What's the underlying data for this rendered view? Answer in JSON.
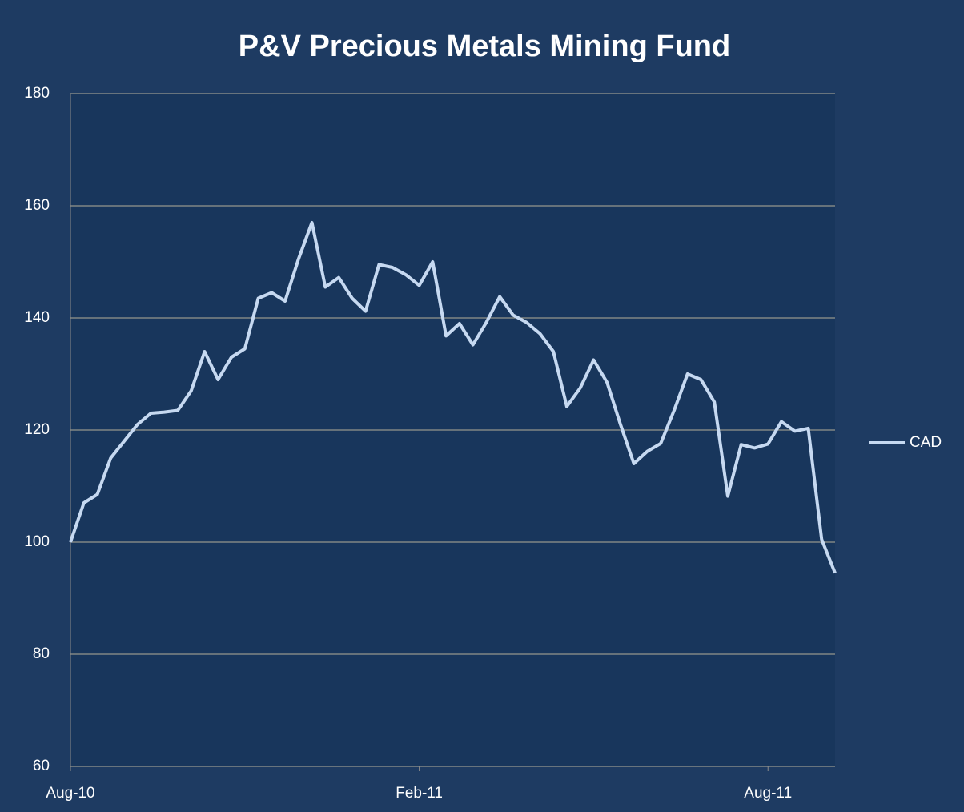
{
  "chart_data": {
    "type": "line",
    "title": "P&V Precious Metals Mining Fund",
    "categories": [
      "Aug-10",
      null,
      null,
      null,
      null,
      null,
      null,
      null,
      null,
      null,
      null,
      null,
      null,
      null,
      null,
      null,
      null,
      null,
      null,
      null,
      null,
      null,
      null,
      null,
      null,
      null,
      "Feb-11",
      null,
      null,
      null,
      null,
      null,
      null,
      null,
      null,
      null,
      null,
      null,
      null,
      null,
      null,
      null,
      null,
      null,
      null,
      null,
      null,
      null,
      null,
      null,
      null,
      null,
      "Aug-11",
      null,
      null,
      null,
      null,
      null
    ],
    "series": [
      {
        "name": "CAD",
        "color": "#c6d9f1",
        "values": [
          100,
          107,
          108.5,
          115,
          118,
          121,
          123,
          123.2,
          123.5,
          127,
          134,
          129,
          133,
          134.5,
          143.5,
          144.5,
          143,
          150.5,
          157,
          145.5,
          147.2,
          143.5,
          141.2,
          149.5,
          149,
          147.7,
          145.8,
          150,
          136.8,
          139,
          135.2,
          139.2,
          143.8,
          140.5,
          139.2,
          137.2,
          134,
          124.2,
          127.5,
          132.5,
          128.5,
          121,
          114,
          116.2,
          117.6,
          123.5,
          130,
          129,
          125,
          108.2,
          117.4,
          116.8,
          117.5,
          121.5,
          119.8,
          120.3,
          100.5,
          94.5
        ]
      }
    ],
    "ylim": [
      60,
      180
    ],
    "yticks": [
      60,
      80,
      100,
      120,
      140,
      160,
      180
    ],
    "grid": true,
    "legend": "right"
  }
}
